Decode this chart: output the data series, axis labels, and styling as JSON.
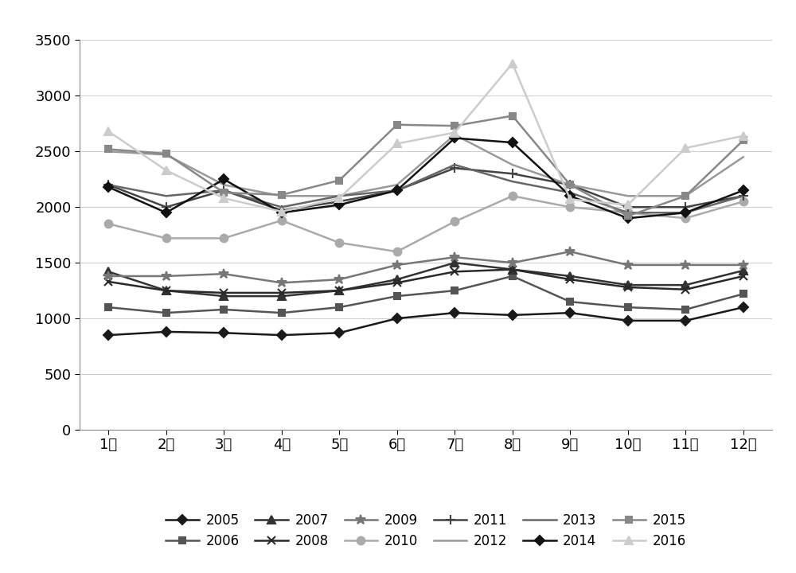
{
  "months": [
    "1月",
    "2月",
    "3月",
    "4月",
    "5月",
    "6月",
    "7月",
    "8月",
    "9月",
    "10月",
    "11月",
    "12月"
  ],
  "series": {
    "2005": [
      850,
      880,
      870,
      850,
      870,
      1000,
      1050,
      1030,
      1050,
      980,
      980,
      1100
    ],
    "2006": [
      1100,
      1050,
      1080,
      1050,
      1100,
      1200,
      1250,
      1380,
      1150,
      1100,
      1080,
      1220
    ],
    "2007": [
      1420,
      1250,
      1200,
      1200,
      1250,
      1350,
      1500,
      1440,
      1380,
      1300,
      1300,
      1430
    ],
    "2008": [
      1330,
      1250,
      1230,
      1230,
      1250,
      1320,
      1420,
      1440,
      1350,
      1280,
      1260,
      1380
    ],
    "2009": [
      1380,
      1380,
      1400,
      1320,
      1350,
      1480,
      1550,
      1500,
      1600,
      1480,
      1480,
      1480
    ],
    "2010": [
      1850,
      1720,
      1720,
      1880,
      1680,
      1600,
      1870,
      2100,
      2000,
      1950,
      1900,
      2050
    ],
    "2011": [
      2200,
      2000,
      2150,
      1970,
      2050,
      2150,
      2350,
      2300,
      2200,
      2000,
      2000,
      2100
    ],
    "2012": [
      2500,
      2470,
      2200,
      2100,
      2100,
      2200,
      2650,
      2380,
      2200,
      2100,
      2100,
      2450
    ],
    "2013": [
      2200,
      2100,
      2150,
      2000,
      2100,
      2150,
      2380,
      2230,
      2130,
      1950,
      1950,
      2100
    ],
    "2014": [
      2180,
      1950,
      2250,
      1950,
      2020,
      2150,
      2620,
      2580,
      2100,
      1900,
      1950,
      2150
    ],
    "2015": [
      2520,
      2480,
      2130,
      2110,
      2240,
      2740,
      2730,
      2820,
      2200,
      1920,
      2100,
      2600
    ],
    "2016": [
      2680,
      2330,
      2080,
      1960,
      2080,
      2570,
      2670,
      3290,
      2070,
      2020,
      2530,
      2640
    ]
  },
  "ylim": [
    0,
    3500
  ],
  "yticks": [
    0,
    500,
    1000,
    1500,
    2000,
    2500,
    3000,
    3500
  ],
  "line_colors": {
    "2005": "#1a1a1a",
    "2006": "#555555",
    "2007": "#333333",
    "2008": "#2a2a2a",
    "2009": "#777777",
    "2010": "#aaaaaa",
    "2011": "#444444",
    "2012": "#999999",
    "2013": "#666666",
    "2014": "#111111",
    "2015": "#888888",
    "2016": "#cccccc"
  },
  "marker_types": {
    "2005": "D",
    "2006": "s",
    "2007": "^",
    "2008": "x",
    "2009": "*",
    "2010": "o",
    "2011": "+",
    "2012": "None",
    "2013": "None",
    "2014": "D",
    "2015": "s",
    "2016": "^"
  },
  "marker_sizes": {
    "2005": 6,
    "2006": 6,
    "2007": 7,
    "2008": 7,
    "2009": 9,
    "2010": 7,
    "2011": 9,
    "2012": 0,
    "2013": 0,
    "2014": 6,
    "2015": 6,
    "2016": 7
  },
  "legend_order": [
    "2005",
    "2006",
    "2007",
    "2008",
    "2009",
    "2010",
    "2011",
    "2012",
    "2013",
    "2014",
    "2015",
    "2016"
  ]
}
